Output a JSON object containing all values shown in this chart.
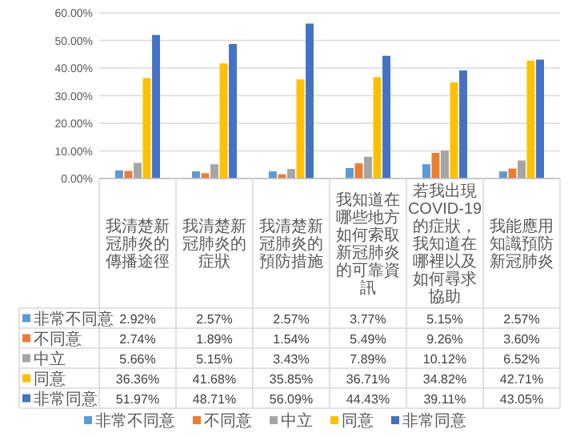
{
  "chart_data": {
    "type": "bar",
    "categories": [
      "我清楚新冠肺炎的傳播途徑",
      "我清楚新冠肺炎的症狀",
      "我清楚新冠肺炎的預防措施",
      "我知道在哪些地方如何索取新冠肺炎的可靠資訊",
      "若我出現COVID-19的症狀，我知道在哪裡以及如何尋求協助",
      "我能應用知識預防新冠肺炎"
    ],
    "series": [
      {
        "name": "非常不同意",
        "color": "#5b9bd5",
        "values": [
          2.92,
          2.57,
          2.57,
          3.77,
          5.15,
          2.57
        ],
        "value_labels": [
          "2.92%",
          "2.57%",
          "2.57%",
          "3.77%",
          "5.15%",
          "2.57%"
        ]
      },
      {
        "name": "不同意",
        "color": "#ed7d31",
        "values": [
          2.74,
          1.89,
          1.54,
          5.49,
          9.26,
          3.6
        ],
        "value_labels": [
          "2.74%",
          "1.89%",
          "1.54%",
          "5.49%",
          "9.26%",
          "3.60%"
        ]
      },
      {
        "name": "中立",
        "color": "#a5a5a5",
        "values": [
          5.66,
          5.15,
          3.43,
          7.89,
          10.12,
          6.52
        ],
        "value_labels": [
          "5.66%",
          "5.15%",
          "3.43%",
          "7.89%",
          "10.12%",
          "6.52%"
        ]
      },
      {
        "name": "同意",
        "color": "#ffc000",
        "values": [
          36.36,
          41.68,
          35.85,
          36.71,
          34.82,
          42.71
        ],
        "value_labels": [
          "36.36%",
          "41.68%",
          "35.85%",
          "36.71%",
          "34.82%",
          "42.71%"
        ]
      },
      {
        "name": "非常同意",
        "color": "#4472c4",
        "values": [
          51.97,
          48.71,
          56.09,
          44.43,
          39.11,
          43.05
        ],
        "value_labels": [
          "51.97%",
          "48.71%",
          "56.09%",
          "44.43%",
          "39.11%",
          "43.05%"
        ]
      }
    ],
    "ylim": [
      0,
      60
    ],
    "yticks": [
      {
        "value": 0,
        "label": "0.00%"
      },
      {
        "value": 10,
        "label": "10.00%"
      },
      {
        "value": 20,
        "label": "20.00%"
      },
      {
        "value": 30,
        "label": "30.00%"
      },
      {
        "value": 40,
        "label": "40.00%"
      },
      {
        "value": 50,
        "label": "50.00%"
      },
      {
        "value": 60,
        "label": "60.00%"
      }
    ],
    "grid": "y",
    "legend": "bottom"
  }
}
